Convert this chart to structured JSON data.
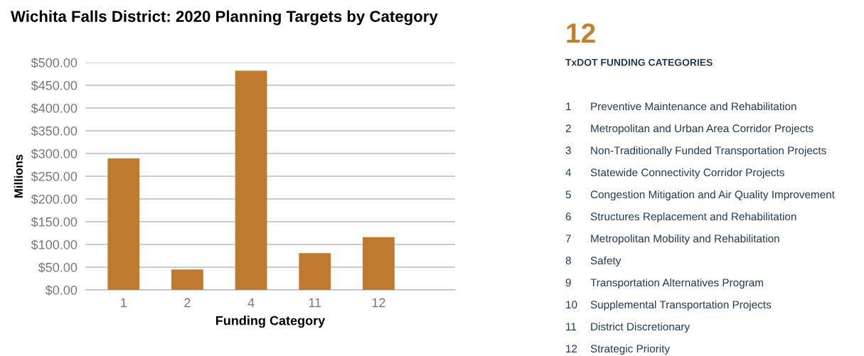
{
  "chart_data": [
    {
      "type": "bar",
      "title": "Wichita Falls District: 2020 Planning Targets by Category",
      "xlabel": "Funding Category",
      "ylabel": "Millions",
      "categories": [
        "1",
        "2",
        "4",
        "11",
        "12"
      ],
      "values": [
        289,
        45,
        482,
        81,
        116
      ],
      "color": "#c07a2f",
      "ylim": [
        0,
        500
      ],
      "yticks": [
        {
          "value": 0,
          "label": "$0.00"
        },
        {
          "value": 50,
          "label": "$50.00"
        },
        {
          "value": 100,
          "label": "$100.00"
        },
        {
          "value": 150,
          "label": "$150.00"
        },
        {
          "value": 200,
          "label": "$200.00"
        },
        {
          "value": 250,
          "label": "$250.00"
        },
        {
          "value": 300,
          "label": "$300.00"
        },
        {
          "value": 350,
          "label": "$350.00"
        },
        {
          "value": 400,
          "label": "$400.00"
        },
        {
          "value": 450,
          "label": "$450.00"
        },
        {
          "value": 500,
          "label": "$500.00"
        }
      ],
      "grid": "y"
    },
    {
      "type": "other",
      "title": "12",
      "subtitle": "TxDOT FUNDING CATEGORIES",
      "data_labels": true,
      "values": [
        1,
        2,
        3,
        4,
        5,
        6,
        7,
        8,
        9,
        10,
        11,
        12
      ],
      "categories": [
        "Preventive Maintenance and Rehabilitation",
        "Metropolitan and Urban Area Corridor Projects",
        "Non-Traditionally Funded Transportation Projects",
        "Statewide Connectivity Corridor Projects",
        "Congestion Mitigation and Air Quality Improvement",
        "Structures Replacement and Rehabilitation",
        "Metropolitan Mobility and Rehabilitation",
        "Safety",
        "Transportation Alternatives Program",
        "Supplemental Transportation Projects",
        "District Discretionary",
        "Strategic Priority"
      ]
    }
  ]
}
